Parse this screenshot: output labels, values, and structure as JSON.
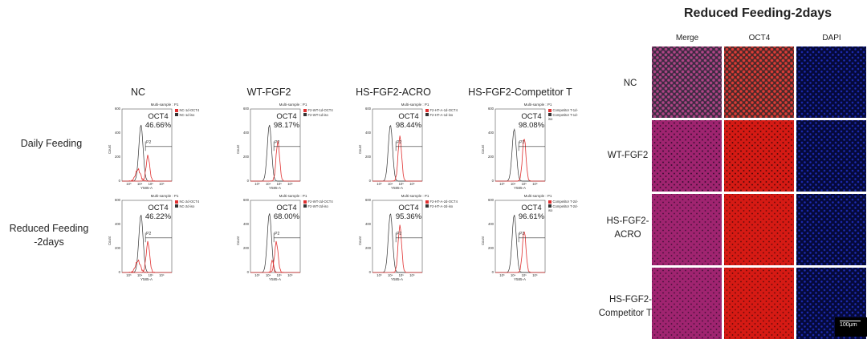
{
  "flow": {
    "columns": [
      "NC",
      "WT-FGF2",
      "HS-FGF2-ACRO",
      "HS-FGF2-Competitor T"
    ],
    "rows": [
      "Daily Feeding",
      "Reduced Feeding\n-2days"
    ],
    "panel_title": "Multi-sample : P1",
    "marker": "OCT4",
    "gate_label": "P2",
    "x_axis_label": "Y585-A",
    "y_axis_label": "Count",
    "y_ticks": [
      "600",
      "400",
      "200",
      "0"
    ],
    "x_ticks": [
      "10³",
      "10⁴",
      "10⁵",
      "10⁶"
    ],
    "panels": [
      {
        "percent": "46.66%",
        "legend": [
          "NC-1d-OCT4",
          "NC-1d-iso"
        ]
      },
      {
        "percent": "98.17%",
        "legend": [
          "F2-WT-1d-OCT4",
          "F2-WT-1d-iso"
        ]
      },
      {
        "percent": "98.44%",
        "legend": [
          "F2-HT-A-1d-OCT4",
          "F2-HT-A-1d-iso"
        ]
      },
      {
        "percent": "98.08%",
        "legend": [
          "Competitor T-1d-",
          "Competitor T-1d-iso"
        ]
      },
      {
        "percent": "46.22%",
        "legend": [
          "NC-2d-OCT4",
          "NC-2d-iso"
        ]
      },
      {
        "percent": "68.00%",
        "legend": [
          "F2-WT-2d-OCT4",
          "F2-WT-2d-iso"
        ]
      },
      {
        "percent": "95.36%",
        "legend": [
          "F2-HT-A-2d-OCT4",
          "F2-HT-A-2d-iso"
        ]
      },
      {
        "percent": "96.61%",
        "legend": [
          "Competitor T-2d-",
          "Competitor T-2d-iso"
        ]
      }
    ]
  },
  "if": {
    "title": "Reduced Feeding-2days",
    "channels": [
      "Merge",
      "OCT4",
      "DAPI"
    ],
    "rows": [
      "NC",
      "WT-FGF2",
      "HS-FGF2-\nACRO",
      "HS-FGF2-\nCompetitor T"
    ],
    "scale_bar": "100μm"
  },
  "colors": {
    "oct4_trace": "#e03030",
    "iso_trace": "#333333",
    "gate_line": "#333333",
    "oct4_stain": "#d61a14",
    "dapi_stain": "#1e2db8",
    "merge_stain": "#a02470"
  }
}
